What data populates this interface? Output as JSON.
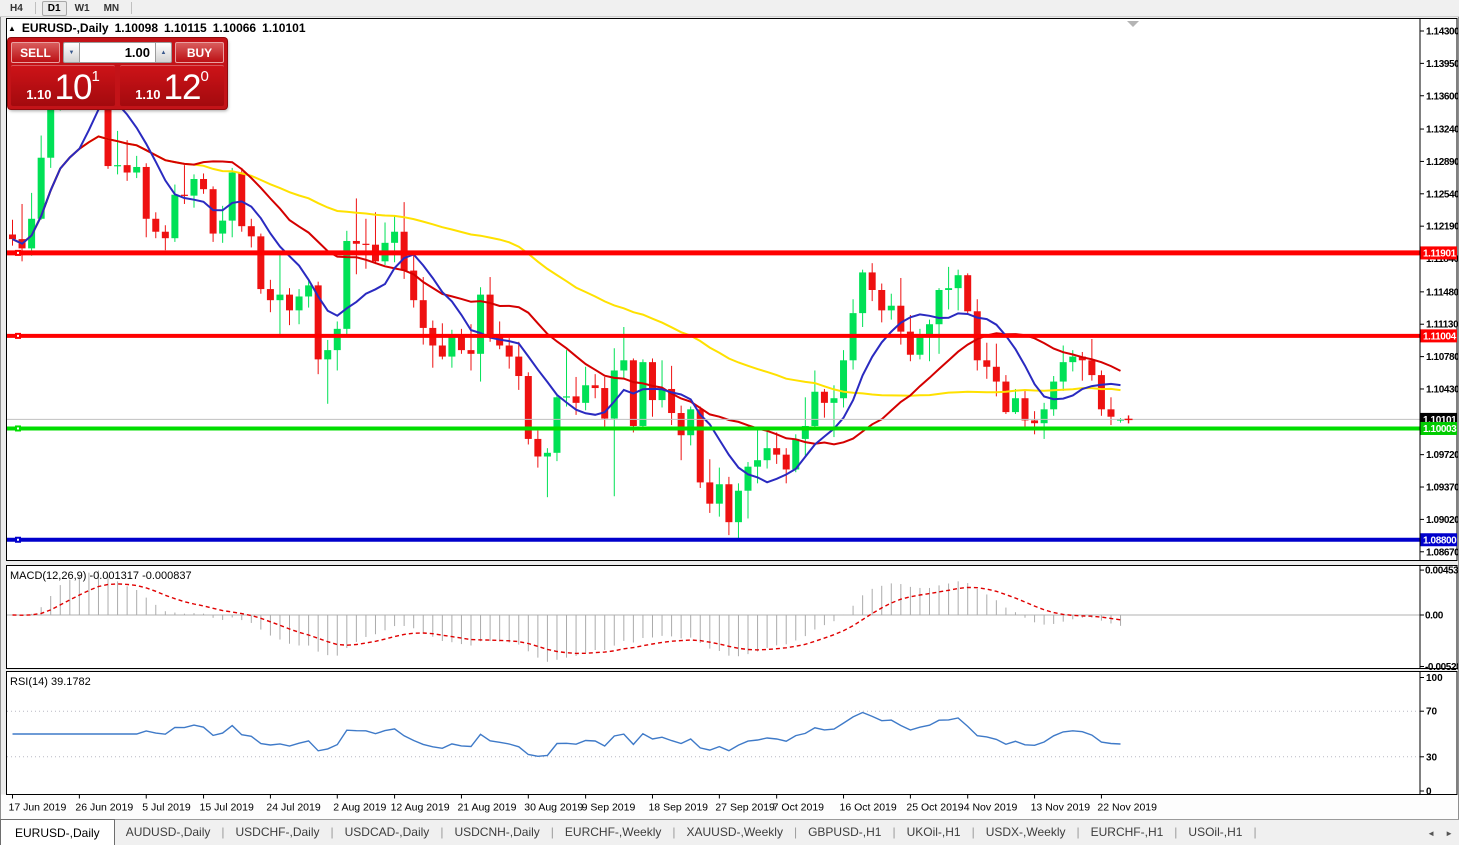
{
  "toolbar": {
    "timeframes": [
      {
        "label": "H4",
        "active": false
      },
      {
        "label": "D1",
        "active": true
      },
      {
        "label": "W1",
        "active": false
      },
      {
        "label": "MN",
        "active": false
      }
    ]
  },
  "title": {
    "collapse_arrow": "▲",
    "symbol": "EURUSD-,Daily",
    "open": "1.10098",
    "high": "1.10115",
    "low": "1.10066",
    "close": "1.10101"
  },
  "trade_panel": {
    "sell_label": "SELL",
    "buy_label": "BUY",
    "volume": "1.00",
    "spin_down": "▼",
    "spin_up": "▲",
    "sell_price": {
      "base": "1.10",
      "big": "10",
      "sup": "1"
    },
    "buy_price": {
      "base": "1.10",
      "big": "12",
      "sup": "0"
    }
  },
  "tabs": {
    "separator": "|",
    "scroll_left": "◄",
    "scroll_right": "►",
    "items": [
      {
        "label": "EURUSD-,Daily",
        "active": true
      },
      {
        "label": "AUDUSD-,Daily",
        "active": false
      },
      {
        "label": "USDCHF-,Daily",
        "active": false
      },
      {
        "label": "USDCAD-,Daily",
        "active": false
      },
      {
        "label": "USDCNH-,Daily",
        "active": false
      },
      {
        "label": "EURCHF-,Weekly",
        "active": false
      },
      {
        "label": "XAUUSD-,Weekly",
        "active": false
      },
      {
        "label": "GBPUSD-,H1",
        "active": false
      },
      {
        "label": "UKOil-,H1",
        "active": false
      },
      {
        "label": "USDX-,Weekly",
        "active": false
      },
      {
        "label": "EURCHF-,H1",
        "active": false
      },
      {
        "label": "USOil-,H1",
        "active": false
      }
    ]
  },
  "chart_data": {
    "type": "candlestick",
    "symbol": "EURUSD-",
    "timeframe": "Daily",
    "colors": {
      "bull": "#00e156",
      "bear": "#ee1111",
      "ma_fast": "#2a2ac0",
      "ma_mid": "#d40000",
      "ma_slow": "#ffe100",
      "hline_red": "#ff0000",
      "hline_green": "#00dd00",
      "hline_blue": "#0000cc",
      "macd_hist": "#ababab",
      "macd_signal": "#e00000",
      "rsi_line": "#3f7ac8",
      "current_line": "#c0c0c0"
    },
    "price_axis": {
      "ticks": [
        "1.14300",
        "1.13950",
        "1.13600",
        "1.13240",
        "1.12890",
        "1.12540",
        "1.12190",
        "1.11840",
        "1.11480",
        "1.11130",
        "1.10780",
        "1.10430",
        "1.09720",
        "1.09370",
        "1.09020",
        "1.08670"
      ],
      "badges": [
        {
          "value": "1.11901",
          "bg": "#ff0000",
          "fg": "#ffffff"
        },
        {
          "value": "1.11004",
          "bg": "#ff0000",
          "fg": "#ffffff"
        },
        {
          "value": "1.10101",
          "bg": "#000000",
          "fg": "#ffffff"
        },
        {
          "value": "1.10003",
          "bg": "#00cc00",
          "fg": "#ffffff"
        },
        {
          "value": "1.08800",
          "bg": "#0000cc",
          "fg": "#ffffff"
        }
      ]
    },
    "hlines": [
      {
        "price": 1.11901,
        "color": "#ff0000",
        "width": 5
      },
      {
        "price": 1.11004,
        "color": "#ff0000",
        "width": 4
      },
      {
        "price": 1.10003,
        "color": "#00dd00",
        "width": 4
      },
      {
        "price": 1.088,
        "color": "#0000cc",
        "width": 4
      }
    ],
    "current_price": 1.10101,
    "moving_averages": [
      {
        "name": "slow",
        "period": 50,
        "color": "#ffe100"
      },
      {
        "name": "mid",
        "period": 20,
        "color": "#d40000"
      },
      {
        "name": "fast",
        "period": 8,
        "color": "#2a2ac0"
      }
    ],
    "macd": {
      "label": "MACD(12,26,9) -0.001317 -0.000837",
      "fast": 12,
      "slow": 26,
      "signal": 9,
      "axis_ticks": [
        "0.004536",
        "0.00",
        "-0.00520"
      ]
    },
    "rsi": {
      "label": "RSI(14) 39.1782",
      "period": 14,
      "levels": [
        70,
        30
      ],
      "axis_ticks": [
        "100",
        "70",
        "30",
        "0"
      ]
    },
    "x_labels": [
      {
        "i": 0,
        "label": "17 Jun 2019"
      },
      {
        "i": 7,
        "label": "26 Jun 2019"
      },
      {
        "i": 14,
        "label": "5 Jul 2019"
      },
      {
        "i": 20,
        "label": "15 Jul 2019"
      },
      {
        "i": 27,
        "label": "24 Jul 2019"
      },
      {
        "i": 34,
        "label": "2 Aug 2019"
      },
      {
        "i": 40,
        "label": "12 Aug 2019"
      },
      {
        "i": 47,
        "label": "21 Aug 2019"
      },
      {
        "i": 54,
        "label": "30 Aug 2019"
      },
      {
        "i": 60,
        "label": "9 Sep 2019"
      },
      {
        "i": 67,
        "label": "18 Sep 2019"
      },
      {
        "i": 74,
        "label": "27 Sep 2019"
      },
      {
        "i": 80,
        "label": "7 Oct 2019"
      },
      {
        "i": 87,
        "label": "16 Oct 2019"
      },
      {
        "i": 94,
        "label": "25 Oct 2019"
      },
      {
        "i": 100,
        "label": "4 Nov 2019"
      },
      {
        "i": 107,
        "label": "13 Nov 2019"
      },
      {
        "i": 114,
        "label": "22 Nov 2019"
      }
    ],
    "candles": [
      [
        1.121,
        1.1226,
        1.1198,
        1.1205
      ],
      [
        1.1205,
        1.1243,
        1.1181,
        1.1195
      ],
      [
        1.1195,
        1.1255,
        1.1187,
        1.1227
      ],
      [
        1.1227,
        1.1317,
        1.1226,
        1.1293
      ],
      [
        1.1293,
        1.1378,
        1.1282,
        1.1369
      ],
      [
        1.1369,
        1.1402,
        1.1344,
        1.1399
      ],
      [
        1.1399,
        1.1412,
        1.1348,
        1.1365
      ],
      [
        1.1365,
        1.1392,
        1.1349,
        1.1368
      ],
      [
        1.1368,
        1.1391,
        1.1357,
        1.1367
      ],
      [
        1.1367,
        1.1391,
        1.1351,
        1.1373
      ],
      [
        1.1373,
        1.1376,
        1.1281,
        1.1284
      ],
      [
        1.1284,
        1.1322,
        1.1275,
        1.1285
      ],
      [
        1.1285,
        1.1312,
        1.1268,
        1.1277
      ],
      [
        1.1277,
        1.1295,
        1.1271,
        1.1283
      ],
      [
        1.1283,
        1.1287,
        1.1207,
        1.1227
      ],
      [
        1.1227,
        1.1234,
        1.1206,
        1.1213
      ],
      [
        1.1213,
        1.122,
        1.1193,
        1.1206
      ],
      [
        1.1206,
        1.1264,
        1.1202,
        1.1253
      ],
      [
        1.1253,
        1.1285,
        1.1243,
        1.1252
      ],
      [
        1.1252,
        1.1275,
        1.1239,
        1.127
      ],
      [
        1.127,
        1.1276,
        1.1254,
        1.1259
      ],
      [
        1.1259,
        1.1262,
        1.1202,
        1.1211
      ],
      [
        1.1211,
        1.1241,
        1.1201,
        1.1225
      ],
      [
        1.1225,
        1.1282,
        1.1207,
        1.1277
      ],
      [
        1.1277,
        1.1282,
        1.1213,
        1.1219
      ],
      [
        1.1219,
        1.1227,
        1.1196,
        1.1208
      ],
      [
        1.1208,
        1.1211,
        1.1146,
        1.1151
      ],
      [
        1.1151,
        1.1161,
        1.1126,
        1.1139
      ],
      [
        1.1139,
        1.1188,
        1.1101,
        1.1145
      ],
      [
        1.1145,
        1.1152,
        1.1112,
        1.1128
      ],
      [
        1.1128,
        1.1151,
        1.1113,
        1.1143
      ],
      [
        1.1143,
        1.1162,
        1.1131,
        1.1155
      ],
      [
        1.1155,
        1.1159,
        1.1059,
        1.1075
      ],
      [
        1.1075,
        1.1096,
        1.1027,
        1.1085
      ],
      [
        1.1085,
        1.1116,
        1.1063,
        1.1108
      ],
      [
        1.1108,
        1.1214,
        1.1101,
        1.1203
      ],
      [
        1.1203,
        1.1249,
        1.1167,
        1.12
      ],
      [
        1.12,
        1.1227,
        1.1173,
        1.1199
      ],
      [
        1.1199,
        1.1234,
        1.1178,
        1.1181
      ],
      [
        1.1181,
        1.1223,
        1.1177,
        1.1201
      ],
      [
        1.1201,
        1.123,
        1.118,
        1.1213
      ],
      [
        1.1213,
        1.1245,
        1.1162,
        1.1171
      ],
      [
        1.1171,
        1.1192,
        1.1131,
        1.1139
      ],
      [
        1.1139,
        1.1164,
        1.1091,
        1.1109
      ],
      [
        1.1109,
        1.1117,
        1.1066,
        1.109
      ],
      [
        1.109,
        1.1114,
        1.1075,
        1.1078
      ],
      [
        1.1078,
        1.1107,
        1.1066,
        1.11
      ],
      [
        1.11,
        1.1108,
        1.1081,
        1.1085
      ],
      [
        1.1085,
        1.1113,
        1.1063,
        1.1081
      ],
      [
        1.1081,
        1.1153,
        1.1051,
        1.1145
      ],
      [
        1.1145,
        1.1164,
        1.1094,
        1.1101
      ],
      [
        1.1101,
        1.1116,
        1.1086,
        1.109
      ],
      [
        1.109,
        1.1098,
        1.1065,
        1.1078
      ],
      [
        1.1078,
        1.1094,
        1.1042,
        1.1057
      ],
      [
        1.1057,
        1.1061,
        1.0983,
        1.0989
      ],
      [
        1.0989,
        1.0998,
        1.0958,
        1.097
      ],
      [
        1.097,
        1.0979,
        1.0926,
        1.0974
      ],
      [
        1.0974,
        1.1038,
        1.0965,
        1.1034
      ],
      [
        1.1034,
        1.1085,
        1.1024,
        1.1035
      ],
      [
        1.1035,
        1.1056,
        1.1015,
        1.1028
      ],
      [
        1.1028,
        1.1067,
        1.102,
        1.1047
      ],
      [
        1.1047,
        1.1059,
        1.1033,
        1.1044
      ],
      [
        1.1044,
        1.1056,
        1.0999,
        1.1011
      ],
      [
        1.1011,
        1.1087,
        1.0927,
        1.1063
      ],
      [
        1.1063,
        1.111,
        1.1054,
        1.1074
      ],
      [
        1.1074,
        1.1076,
        1.0996,
        1.1003
      ],
      [
        1.1003,
        1.1075,
        1.0999,
        1.1072
      ],
      [
        1.1072,
        1.1076,
        1.1013,
        1.1031
      ],
      [
        1.1031,
        1.1074,
        1.1023,
        1.1043
      ],
      [
        1.1043,
        1.1068,
        1.1004,
        1.1017
      ],
      [
        1.1017,
        1.1025,
        1.0966,
        1.0993
      ],
      [
        1.0993,
        1.1024,
        1.0982,
        1.1021
      ],
      [
        1.1021,
        1.1024,
        1.0936,
        1.0942
      ],
      [
        1.0942,
        1.0967,
        1.0909,
        1.0919
      ],
      [
        1.0919,
        1.0958,
        1.0905,
        1.094
      ],
      [
        1.094,
        1.0948,
        1.0885,
        1.0899
      ],
      [
        1.0899,
        1.0941,
        1.0879,
        1.0933
      ],
      [
        1.0933,
        1.0964,
        1.0903,
        1.0959
      ],
      [
        1.0959,
        1.0999,
        1.0941,
        1.0966
      ],
      [
        1.0966,
        1.0999,
        1.0957,
        1.0979
      ],
      [
        1.0979,
        1.0996,
        1.0962,
        1.0972
      ],
      [
        1.0972,
        1.0979,
        1.0941,
        1.0956
      ],
      [
        1.0956,
        1.0994,
        1.0953,
        1.0989
      ],
      [
        1.0989,
        1.1034,
        1.0971,
        1.1003
      ],
      [
        1.1003,
        1.1063,
        1.1002,
        1.104
      ],
      [
        1.104,
        1.1043,
        1.1012,
        1.1028
      ],
      [
        1.1028,
        1.1047,
        1.0991,
        1.1033
      ],
      [
        1.1033,
        1.1085,
        1.1023,
        1.1074
      ],
      [
        1.1074,
        1.114,
        1.1064,
        1.1125
      ],
      [
        1.1125,
        1.1172,
        1.111,
        1.1169
      ],
      [
        1.1169,
        1.1179,
        1.1138,
        1.115
      ],
      [
        1.115,
        1.1157,
        1.1115,
        1.1128
      ],
      [
        1.1128,
        1.1146,
        1.1118,
        1.1133
      ],
      [
        1.1133,
        1.1163,
        1.1091,
        1.1105
      ],
      [
        1.1105,
        1.1123,
        1.1073,
        1.108
      ],
      [
        1.108,
        1.1108,
        1.1075,
        1.1099
      ],
      [
        1.1099,
        1.1118,
        1.1073,
        1.1113
      ],
      [
        1.1113,
        1.1152,
        1.1081,
        1.115
      ],
      [
        1.115,
        1.1175,
        1.1129,
        1.1152
      ],
      [
        1.1152,
        1.1172,
        1.1128,
        1.1166
      ],
      [
        1.1166,
        1.1168,
        1.1124,
        1.1127
      ],
      [
        1.1127,
        1.114,
        1.1063,
        1.1074
      ],
      [
        1.1074,
        1.1093,
        1.1054,
        1.1067
      ],
      [
        1.1067,
        1.1092,
        1.1035,
        1.1051
      ],
      [
        1.1051,
        1.1058,
        1.1016,
        1.1018
      ],
      [
        1.1018,
        1.1043,
        1.1016,
        1.1033
      ],
      [
        1.1033,
        1.1042,
        1.1002,
        1.1009
      ],
      [
        1.1009,
        1.1019,
        1.0994,
        1.1006
      ],
      [
        1.1006,
        1.1028,
        1.0989,
        1.1021
      ],
      [
        1.1021,
        1.1057,
        1.1014,
        1.1051
      ],
      [
        1.1051,
        1.109,
        1.1041,
        1.1072
      ],
      [
        1.1072,
        1.1085,
        1.1062,
        1.1078
      ],
      [
        1.1078,
        1.1083,
        1.1052,
        1.1074
      ],
      [
        1.1074,
        1.1097,
        1.1052,
        1.1058
      ],
      [
        1.1058,
        1.1063,
        1.1014,
        1.1021
      ],
      [
        1.1021,
        1.1034,
        1.1004,
        1.1013
      ],
      [
        1.10098,
        1.10115,
        1.10066,
        1.10101
      ]
    ]
  }
}
